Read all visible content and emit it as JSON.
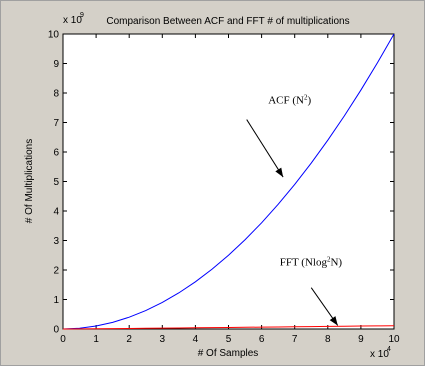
{
  "chart_data": {
    "type": "line",
    "title": "Comparison Between ACF and FFT # of multiplications",
    "xlabel": "# Of Samples",
    "ylabel": "# Of Multiplications",
    "x_exponent_label": "x 10",
    "x_exponent_power": "4",
    "y_exponent_label": "x 10",
    "y_exponent_power": "9",
    "xlim": [
      0,
      10
    ],
    "ylim": [
      0,
      10
    ],
    "x_ticks": [
      "0",
      "1",
      "2",
      "3",
      "4",
      "5",
      "6",
      "7",
      "8",
      "9",
      "10"
    ],
    "y_ticks": [
      "0",
      "1",
      "2",
      "3",
      "4",
      "5",
      "6",
      "7",
      "8",
      "9",
      "10"
    ],
    "grid": false,
    "series": [
      {
        "color": "#0000ff",
        "x": [
          0,
          0.5,
          1,
          1.5,
          2,
          2.5,
          3,
          3.5,
          4,
          4.5,
          5,
          5.5,
          6,
          6.5,
          7,
          7.5,
          8,
          8.5,
          9,
          9.5,
          10
        ],
        "values": [
          0,
          0.025,
          0.1,
          0.225,
          0.4,
          0.625,
          0.9,
          1.225,
          1.6,
          2.025,
          2.5,
          3.025,
          3.6,
          4.225,
          4.9,
          5.625,
          6.4,
          7.225,
          8.1,
          9.025,
          10
        ]
      },
      {
        "color": "#ff0000",
        "x": [
          0,
          0.5,
          1,
          1.5,
          2,
          2.5,
          3,
          3.5,
          4,
          4.5,
          5,
          5.5,
          6,
          6.5,
          7,
          7.5,
          8,
          8.5,
          9,
          9.5,
          10
        ],
        "values": [
          0,
          0.004,
          0.009,
          0.014,
          0.019,
          0.025,
          0.03,
          0.036,
          0.041,
          0.047,
          0.053,
          0.058,
          0.064,
          0.07,
          0.076,
          0.082,
          0.088,
          0.094,
          0.1,
          0.106,
          0.112
        ]
      }
    ],
    "annotations": [
      {
        "name": "acf",
        "text_main": "ACF (N",
        "text_sup": "2",
        "text_end": ")",
        "text_x": 6.2,
        "text_y": 7.65,
        "arrow_from": [
          5.55,
          7.1
        ],
        "arrow_to": [
          6.65,
          5.15
        ]
      },
      {
        "name": "fft",
        "text_main": "FFT (Nlog",
        "text_sup": "2",
        "text_end": "N)",
        "text_x": 6.55,
        "text_y": 2.15,
        "arrow_from": [
          7.5,
          1.4
        ],
        "arrow_to": [
          8.3,
          0.12
        ]
      }
    ]
  }
}
